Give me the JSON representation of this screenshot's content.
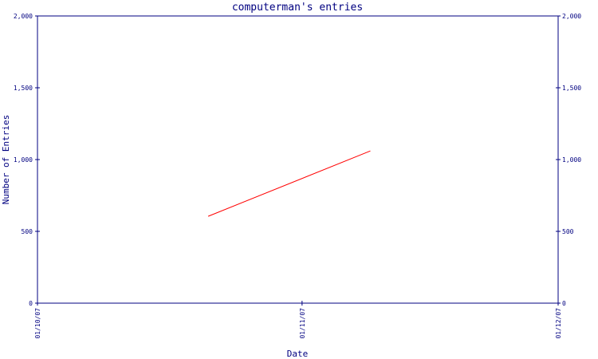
{
  "chart_data": {
    "type": "line",
    "title": "computerman's entries",
    "xlabel": "Date",
    "ylabel": "Number of Entries",
    "ylim": [
      0,
      2000
    ],
    "y_ticks": [
      0,
      500,
      1000,
      1500,
      2000
    ],
    "y_tick_labels": [
      "0",
      "500",
      "1,000",
      "1,500",
      "2,000"
    ],
    "x_range": [
      "01/10/07",
      "01/12/07"
    ],
    "x_tick_labels": [
      "01/10/07",
      "01/11/07",
      "01/12/07"
    ],
    "right_axis": true,
    "grid": false,
    "series": [
      {
        "color": "#ff0000",
        "points": [
          {
            "x": "2007-10-21",
            "y": 605
          },
          {
            "x": "2007-11-09",
            "y": 1060
          }
        ]
      }
    ]
  }
}
